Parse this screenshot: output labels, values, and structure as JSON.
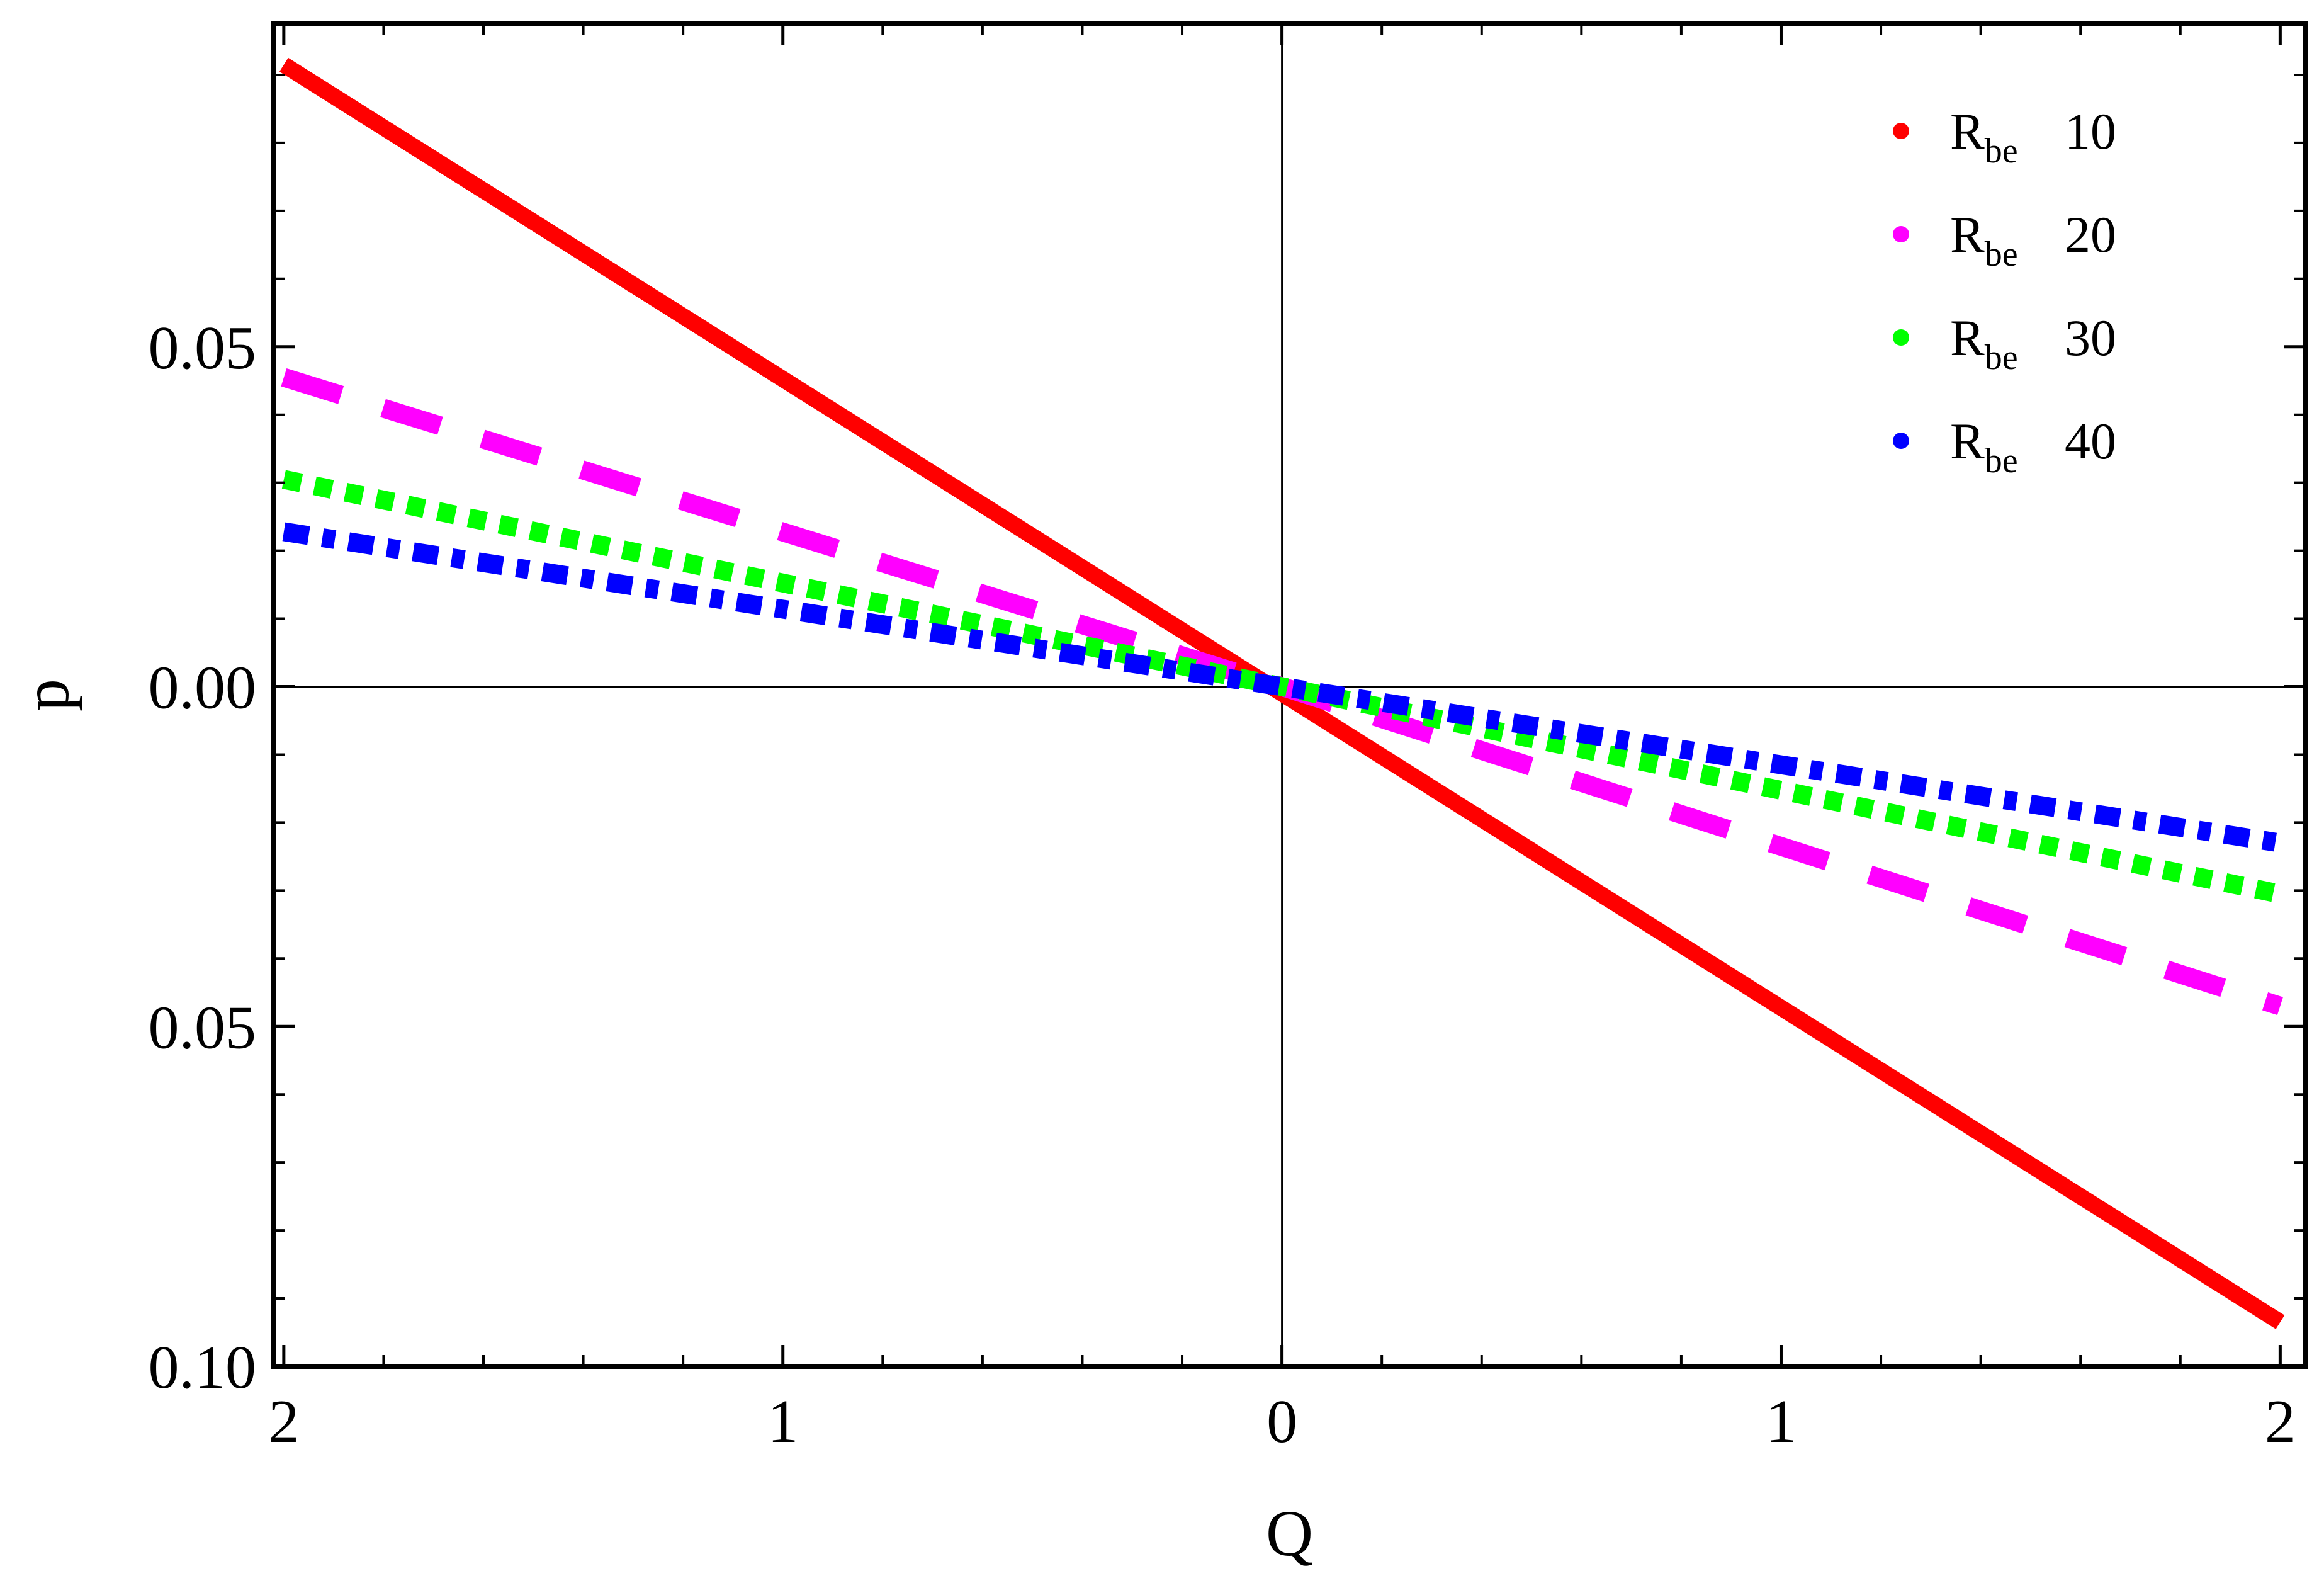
{
  "chart_data": {
    "type": "line",
    "xlabel": "Q",
    "ylabel": "p",
    "xlim": [
      -2.02,
      2.05
    ],
    "ylim": [
      -0.1,
      0.0975
    ],
    "x_ticks": [
      {
        "value": -2,
        "label": "2"
      },
      {
        "value": -1,
        "label": "1"
      },
      {
        "value": 0,
        "label": "0"
      },
      {
        "value": 1,
        "label": "1"
      },
      {
        "value": 2,
        "label": "2"
      }
    ],
    "y_ticks": [
      {
        "value": 0.05,
        "label": "0.05"
      },
      {
        "value": 0.0,
        "label": "0.00"
      },
      {
        "value": -0.05,
        "label": "0.05"
      },
      {
        "value": -0.1,
        "label": "0.10"
      }
    ],
    "grid": false,
    "legend_position": "top-right",
    "series": [
      {
        "name_main": "R",
        "name_sub": "be",
        "value_label": "10",
        "color": "#ff0000",
        "style": "solid",
        "x": [
          -2,
          0,
          2
        ],
        "y": [
          0.0915,
          -0.001,
          -0.0935
        ]
      },
      {
        "name_main": "R",
        "name_sub": "be",
        "value_label": "20",
        "color": "#ff00ff",
        "style": "dashed",
        "x": [
          -2,
          0,
          2
        ],
        "y": [
          0.0455,
          0.0,
          -0.047
        ]
      },
      {
        "name_main": "R",
        "name_sub": "be",
        "value_label": "30",
        "color": "#00ff00",
        "style": "dotted",
        "x": [
          -2,
          0,
          2
        ],
        "y": [
          0.0305,
          0.0,
          -0.0305
        ]
      },
      {
        "name_main": "R",
        "name_sub": "be",
        "value_label": "40",
        "color": "#0000ff",
        "style": "dashdot",
        "x": [
          -2,
          0,
          2
        ],
        "y": [
          0.0228,
          0.0,
          -0.023
        ]
      }
    ]
  }
}
